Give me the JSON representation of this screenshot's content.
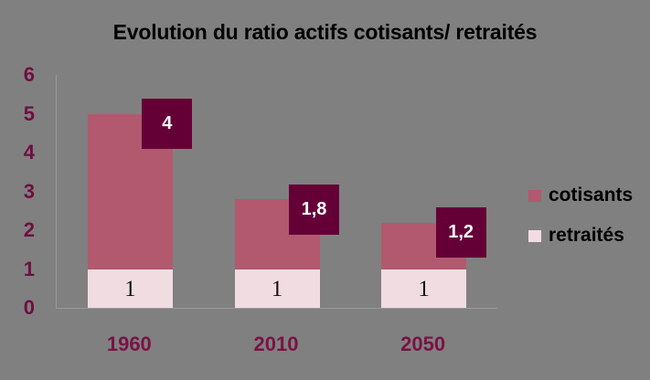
{
  "chart_data": {
    "type": "bar",
    "stacked": true,
    "title": "Evolution du ratio actifs cotisants/ retraités",
    "categories": [
      "1960",
      "2010",
      "2050"
    ],
    "series": [
      {
        "name": "retraités",
        "color": "#f1dce2",
        "values": [
          1,
          1,
          1
        ],
        "value_labels": [
          "1",
          "1",
          "1"
        ],
        "label_style": "inside-black"
      },
      {
        "name": "cotisants",
        "color": "#b2596f",
        "values": [
          4,
          1.8,
          1.2
        ],
        "value_labels": [
          "4",
          "1,8",
          "1,2"
        ],
        "label_style": "dark-square-callout"
      }
    ],
    "ylim": [
      0,
      6
    ],
    "yticks": [
      0,
      1,
      2,
      3,
      4,
      5,
      6
    ],
    "grid": false,
    "legend": {
      "position": "right",
      "items": [
        {
          "label": "cotisants",
          "color": "#b2596f"
        },
        {
          "label": "retraités",
          "color": "#f1dce2"
        }
      ]
    }
  },
  "colors": {
    "background": "#808080",
    "axis_line": "#9a9a9a",
    "tick_label": "#6d0f40",
    "category_label": "#7a1245",
    "title_text": "#000000",
    "legend_text": "#000000",
    "inside_label_text": "#111111",
    "callout_bg": "#650037",
    "callout_text": "#ffffff"
  }
}
